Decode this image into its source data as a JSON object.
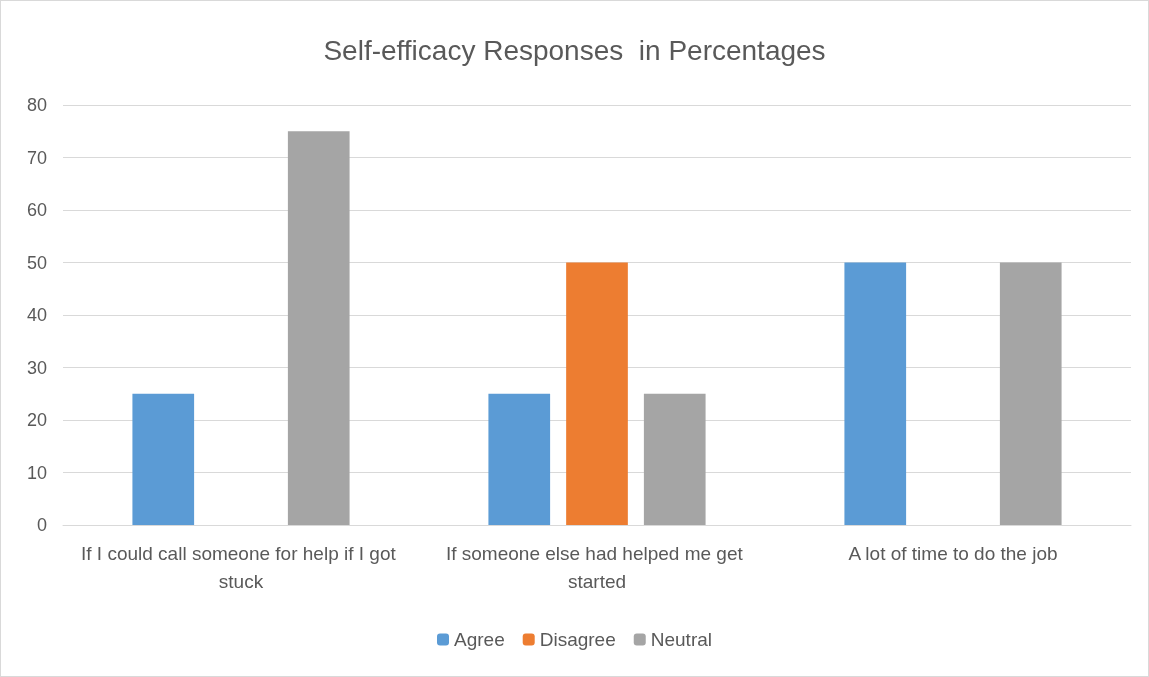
{
  "chart_data": {
    "type": "bar",
    "title": "Self-efficacy Responses  in Percentages",
    "categories": [
      "If I could call someone for help if I got stuck",
      "If someone else had helped me get started",
      "A lot of time to do the job"
    ],
    "series": [
      {
        "name": "Agree",
        "color": "#5b9bd5",
        "values": [
          25,
          25,
          50
        ]
      },
      {
        "name": "Disagree",
        "color": "#ed7d31",
        "values": [
          null,
          50,
          null
        ]
      },
      {
        "name": "Neutral",
        "color": "#a5a5a5",
        "values": [
          75,
          25,
          50
        ]
      }
    ],
    "ylim": [
      0,
      80
    ],
    "yticks": [
      0,
      10,
      20,
      30,
      40,
      50,
      60,
      70,
      80
    ],
    "grid": "y",
    "legend": "bottom"
  }
}
